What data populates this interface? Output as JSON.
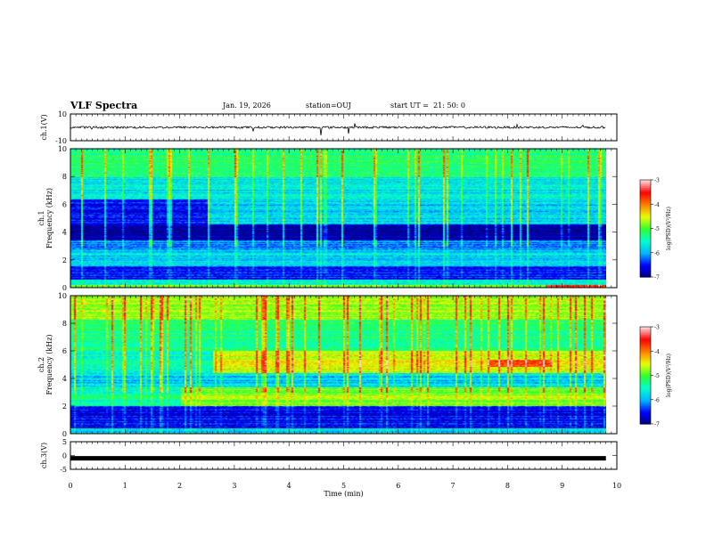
{
  "header": {
    "title": "VLF Spectra",
    "date": "Jan. 19, 2026",
    "station": "station=OUJ",
    "start": "start UT =  21: 50: 0"
  },
  "chart_data": {
    "type": "heatmap",
    "xlabel": "Time (min)",
    "xlim": [
      0,
      10
    ],
    "xticks": [
      "0",
      "1",
      "2",
      "3",
      "4",
      "5",
      "6",
      "7",
      "8",
      "9",
      "10"
    ],
    "panels": [
      {
        "id": "ch1-waveform",
        "kind": "line",
        "ylabel": "ch.1(V)",
        "ylim": [
          -10,
          10
        ],
        "yticks": [
          "10",
          "-10"
        ],
        "level": 0
      },
      {
        "id": "ch1-spectrogram",
        "kind": "spectrogram",
        "ylabel_top": "ch.1",
        "ylabel": "Frequency (kHz)",
        "ylim": [
          0,
          10
        ],
        "yticks": [
          "0",
          "2",
          "4",
          "6",
          "8",
          "10"
        ]
      },
      {
        "id": "ch2-spectrogram",
        "kind": "spectrogram",
        "ylabel_top": "ch.2",
        "ylabel": "Frequency (kHz)",
        "ylim": [
          0,
          10
        ],
        "yticks": [
          "0",
          "2",
          "4",
          "6",
          "8",
          "10"
        ]
      },
      {
        "id": "ch3-waveform",
        "kind": "line",
        "ylabel": "ch.3(V)",
        "ylim": [
          -5,
          5
        ],
        "yticks": [
          "5",
          "0",
          "-5"
        ],
        "level": -1
      }
    ],
    "colorbar": {
      "label": "log(PSD)(V²/Hz)",
      "range": [
        -7,
        -3
      ],
      "ticks": [
        "-3",
        "-4",
        "-5",
        "-6",
        "-7"
      ]
    },
    "data_end_min": 9.8
  },
  "colors": {
    "scale": [
      "#00007f",
      "#0000ff",
      "#00b4ff",
      "#00ffd0",
      "#30ff30",
      "#e8ff00",
      "#ff8000",
      "#ff0000",
      "#ffd8d8"
    ]
  }
}
